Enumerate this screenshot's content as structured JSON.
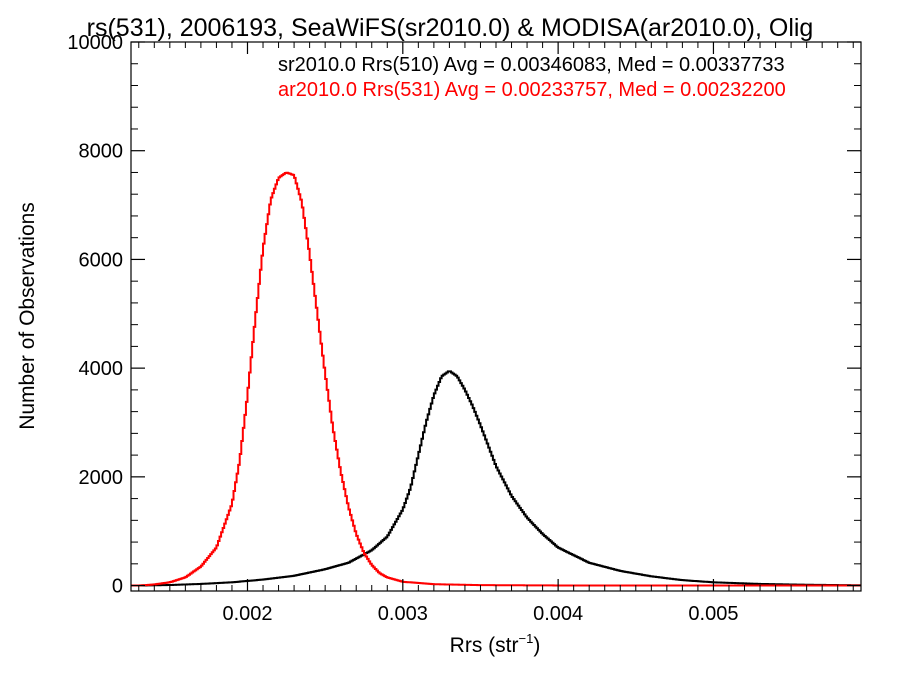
{
  "chart_data": {
    "type": "line",
    "title": "rs(531), 2006193, SeaWiFS(sr2010.0) & MODISA(ar2010.0), Olig",
    "xlabel_main": "Rrs (str",
    "xlabel_sup": "−1",
    "xlabel_close": ")",
    "ylabel": "Number of Observations",
    "xlim": [
      0.00125,
      0.00595
    ],
    "ylim": [
      -100,
      10000
    ],
    "x_ticks": [
      0.002,
      0.003,
      0.004,
      0.005
    ],
    "x_tick_labels": [
      "0.002",
      "0.003",
      "0.004",
      "0.005"
    ],
    "y_ticks": [
      0,
      2000,
      4000,
      6000,
      8000,
      10000
    ],
    "y_tick_labels": [
      "0",
      "2000",
      "4000",
      "6000",
      "8000",
      "10000"
    ],
    "grid": false,
    "legend": [
      {
        "text": "sr2010.0 Rrs(510) Avg = 0.00346083, Med = 0.00337733",
        "color": "#000000"
      },
      {
        "text": "ar2010.0 Rrs(531) Avg = 0.00233757, Med = 0.00232200",
        "color": "#ff0000"
      }
    ],
    "series": [
      {
        "color": "#000000",
        "points": [
          [
            0.0013,
            0
          ],
          [
            0.0015,
            10
          ],
          [
            0.0017,
            30
          ],
          [
            0.0019,
            60
          ],
          [
            0.0021,
            110
          ],
          [
            0.0023,
            180
          ],
          [
            0.0025,
            300
          ],
          [
            0.00265,
            420
          ],
          [
            0.0028,
            650
          ],
          [
            0.0029,
            900
          ],
          [
            0.003,
            1400
          ],
          [
            0.00305,
            1800
          ],
          [
            0.0031,
            2400
          ],
          [
            0.00315,
            3000
          ],
          [
            0.0032,
            3500
          ],
          [
            0.00325,
            3850
          ],
          [
            0.0033,
            3950
          ],
          [
            0.00335,
            3850
          ],
          [
            0.0034,
            3600
          ],
          [
            0.00345,
            3300
          ],
          [
            0.0035,
            2950
          ],
          [
            0.0036,
            2200
          ],
          [
            0.0037,
            1650
          ],
          [
            0.0038,
            1250
          ],
          [
            0.0039,
            950
          ],
          [
            0.004,
            700
          ],
          [
            0.0042,
            420
          ],
          [
            0.0044,
            270
          ],
          [
            0.0046,
            170
          ],
          [
            0.0048,
            100
          ],
          [
            0.005,
            60
          ],
          [
            0.0053,
            30
          ],
          [
            0.0056,
            15
          ],
          [
            0.00595,
            5
          ]
        ]
      },
      {
        "color": "#ff0000",
        "points": [
          [
            0.0013,
            0
          ],
          [
            0.0014,
            20
          ],
          [
            0.0015,
            60
          ],
          [
            0.0016,
            150
          ],
          [
            0.0017,
            350
          ],
          [
            0.0018,
            700
          ],
          [
            0.0019,
            1500
          ],
          [
            0.00195,
            2300
          ],
          [
            0.002,
            3500
          ],
          [
            0.00205,
            4900
          ],
          [
            0.0021,
            6200
          ],
          [
            0.00215,
            7100
          ],
          [
            0.0022,
            7500
          ],
          [
            0.00225,
            7600
          ],
          [
            0.0023,
            7550
          ],
          [
            0.00235,
            7050
          ],
          [
            0.0024,
            6100
          ],
          [
            0.00245,
            5000
          ],
          [
            0.0025,
            3900
          ],
          [
            0.00255,
            2900
          ],
          [
            0.0026,
            2100
          ],
          [
            0.00265,
            1450
          ],
          [
            0.0027,
            950
          ],
          [
            0.00275,
            600
          ],
          [
            0.0028,
            380
          ],
          [
            0.00285,
            230
          ],
          [
            0.0029,
            150
          ],
          [
            0.003,
            70
          ],
          [
            0.0032,
            25
          ],
          [
            0.0035,
            8
          ],
          [
            0.004,
            2
          ],
          [
            0.00595,
            0
          ]
        ]
      }
    ]
  }
}
